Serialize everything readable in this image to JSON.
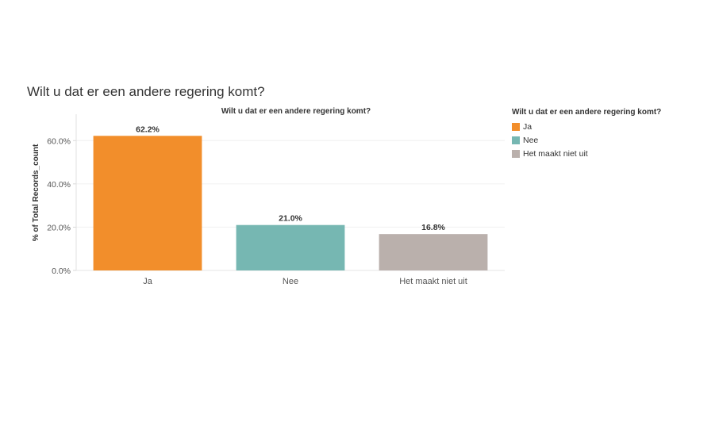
{
  "sheet_title": "Wilt u dat er een andere regering komt?",
  "chart_data": {
    "type": "bar",
    "title": "Wilt u dat er een andere regering komt?",
    "xlabel": "",
    "ylabel": "% of Total Records_count",
    "categories": [
      "Ja",
      "Nee",
      "Het maakt niet uit"
    ],
    "values": [
      62.2,
      21.0,
      16.8
    ],
    "data_labels": [
      "62.2%",
      "21.0%",
      "16.8%"
    ],
    "colors": [
      "#f28e2b",
      "#76b7b2",
      "#bab0ac"
    ],
    "ylim": [
      0,
      70
    ],
    "yticks": [
      0,
      20,
      40,
      60
    ],
    "ytick_labels": [
      "0.0%",
      "20.0%",
      "40.0%",
      "60.0%"
    ],
    "grid": true,
    "legend_position": "right"
  },
  "legend": {
    "title": "Wilt u dat er een andere regering komt?",
    "items": [
      {
        "label": "Ja",
        "color": "#f28e2b"
      },
      {
        "label": "Nee",
        "color": "#76b7b2"
      },
      {
        "label": "Het maakt niet uit",
        "color": "#bab0ac"
      }
    ]
  }
}
